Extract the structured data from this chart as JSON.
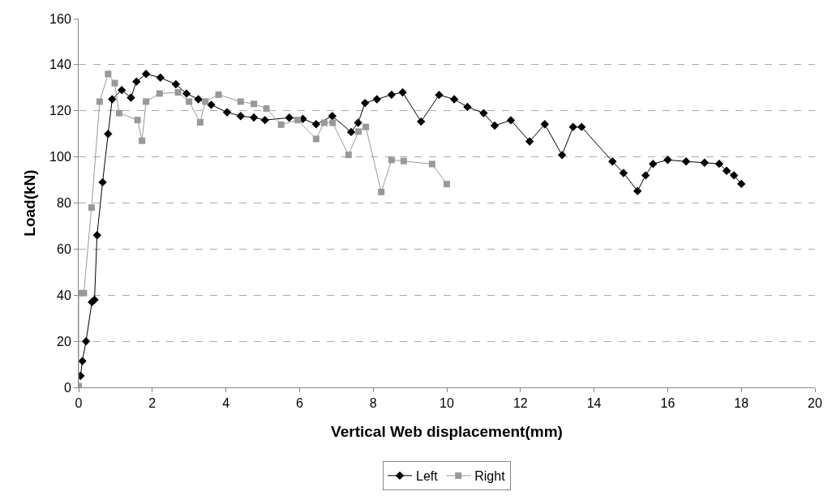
{
  "chart_data": {
    "type": "line",
    "xlabel": "Vertical Web displacement(mm)",
    "ylabel": "Load(kN)",
    "xlim": [
      0,
      20
    ],
    "xticks": [
      0,
      2,
      4,
      6,
      8,
      10,
      12,
      14,
      16,
      18,
      20
    ],
    "ylim": [
      0,
      160
    ],
    "yticks": [
      0,
      20,
      40,
      60,
      80,
      100,
      120,
      140,
      160
    ],
    "grid": "y",
    "legend": "bottom",
    "series": [
      {
        "name": "Left",
        "color": "#000000",
        "marker": "diamond",
        "x": [
          0.05,
          0.1,
          0.2,
          0.36,
          0.43,
          0.5,
          0.65,
          0.8,
          0.91,
          1.17,
          1.42,
          1.57,
          1.83,
          2.22,
          2.64,
          2.93,
          3.25,
          3.6,
          4.03,
          4.4,
          4.76,
          5.06,
          5.72,
          6.09,
          6.45,
          6.89,
          7.4,
          7.59,
          7.78,
          8.1,
          8.5,
          8.8,
          9.3,
          9.79,
          10.2,
          10.56,
          11.0,
          11.3,
          11.74,
          12.25,
          12.66,
          13.13,
          13.43,
          13.66,
          14.5,
          14.8,
          15.18,
          15.4,
          15.6,
          16.0,
          16.5,
          17.0,
          17.4,
          17.6,
          17.8,
          18.0
        ],
        "values": [
          5,
          11.4,
          20,
          37,
          38,
          66,
          89,
          110,
          125,
          129,
          125.7,
          132.7,
          136,
          134.4,
          131.5,
          127.5,
          125,
          122.6,
          119.4,
          117.7,
          117.1,
          116,
          117,
          116.5,
          114.2,
          117.7,
          110.8,
          114.8,
          123.4,
          125,
          127,
          128,
          115.3,
          126.9,
          125,
          121.7,
          119,
          113.6,
          115.9,
          106.7,
          114.2,
          100.8,
          113,
          113,
          98,
          93,
          85.2,
          92,
          97,
          98.7,
          98,
          97.5,
          97,
          94,
          92,
          88.3
        ]
      },
      {
        "name": "Right",
        "color": "#999999",
        "marker": "square",
        "x": [
          0,
          0,
          0.14,
          0.35,
          0.57,
          0.8,
          0.98,
          1.1,
          1.6,
          1.72,
          1.83,
          2.2,
          2.7,
          3.0,
          3.3,
          3.44,
          3.8,
          4.4,
          4.76,
          5.1,
          5.5,
          5.95,
          6.45,
          6.67,
          6.9,
          7.33,
          7.6,
          7.8,
          8.22,
          8.5,
          8.83,
          9.6,
          10.0
        ],
        "values": [
          0.5,
          40.9,
          40.9,
          78,
          124,
          136,
          132,
          119,
          116,
          107,
          124,
          127.5,
          128,
          124,
          115,
          124,
          127,
          124,
          123,
          121,
          114,
          116,
          107.8,
          114.8,
          114.8,
          100.9,
          111,
          113,
          84.8,
          98.7,
          98.2,
          96.9,
          88.2
        ]
      }
    ]
  }
}
